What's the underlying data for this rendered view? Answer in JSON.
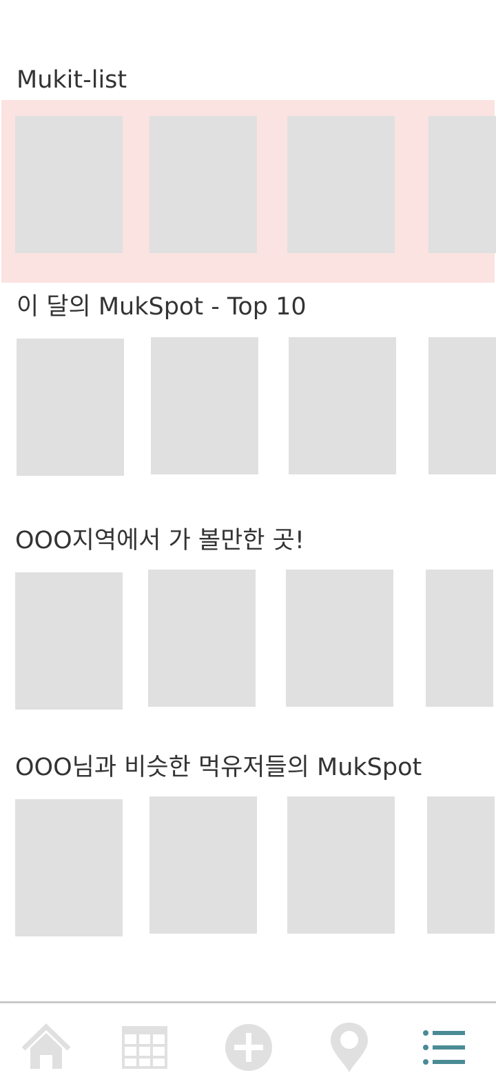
{
  "sections": [
    {
      "title": "Mukit-list",
      "highlighted": true
    },
    {
      "title": "이 달의  MukSpot - Top 10"
    },
    {
      "title": "OOO지역에서 가 볼만한 곳!"
    },
    {
      "title": "OOO님과 비슷한 먹유저들의 MukSpot"
    }
  ],
  "colors": {
    "highlight_band": "#fbe3e1",
    "card_placeholder": "#e0e0e0",
    "nav_inactive": "#e0e0e0",
    "nav_active": "#4a8b95"
  },
  "bottom_nav": {
    "items": [
      {
        "icon": "home-icon",
        "active": false
      },
      {
        "icon": "grid-icon",
        "active": false
      },
      {
        "icon": "add-circle-icon",
        "active": false
      },
      {
        "icon": "map-pin-icon",
        "active": false
      },
      {
        "icon": "list-icon",
        "active": true
      }
    ]
  }
}
